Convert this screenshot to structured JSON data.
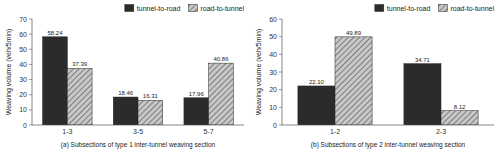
{
  "chart_data": [
    {
      "type": "bar",
      "xlabel": "(a) Subsections of type 1 inter-tunnel weaving section",
      "ylabel": "Weaving volume (veh/5min)",
      "categories": [
        "1-3",
        "3-5",
        "5-7"
      ],
      "series": [
        {
          "name": "tunnel-to-road",
          "color": "#2b2b2b",
          "values": [
            58.24,
            18.46,
            17.96
          ]
        },
        {
          "name": "road-to-tunnel",
          "color": "#c8c8c8",
          "values": [
            37.39,
            16.31,
            40.86
          ]
        }
      ],
      "ylim": [
        0,
        70
      ],
      "yticks": [
        0,
        10,
        20,
        30,
        40,
        50,
        60,
        70
      ],
      "grid": false,
      "legend": "upper right",
      "data_labels": true
    },
    {
      "type": "bar",
      "xlabel": "(b) Subsections of type 2 inter-tunnel weaving section",
      "ylabel": "Weaving volume (veh/5min)",
      "categories": [
        "1-2",
        "2-3"
      ],
      "series": [
        {
          "name": "tunnel-to-road",
          "color": "#2b2b2b",
          "values": [
            22.1,
            34.71
          ],
          "value_labels": [
            "22.10",
            "34.71"
          ]
        },
        {
          "name": "road-to-tunnel",
          "color": "#c8c8c8",
          "values": [
            49.89,
            8.12
          ]
        }
      ],
      "ylim": [
        0,
        60
      ],
      "yticks": [
        0,
        10,
        20,
        30,
        40,
        50,
        60
      ],
      "grid": false,
      "legend": "upper right",
      "data_labels": true
    }
  ]
}
